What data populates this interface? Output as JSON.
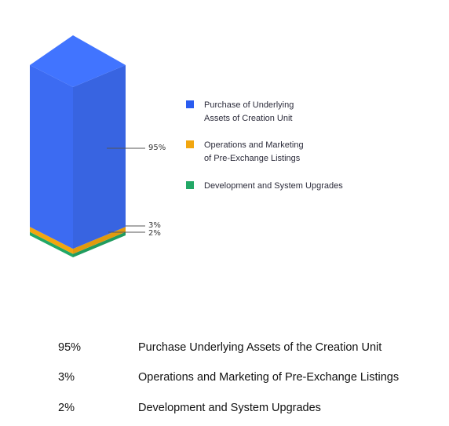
{
  "chart_data": {
    "type": "bar",
    "style": "3d-stacked-column",
    "categories": [
      "Purchase of Underlying Assets of Creation Unit",
      "Operations and Marketing of Pre-Exchange Listings",
      "Development and System Upgrades"
    ],
    "values": [
      95,
      3,
      2
    ],
    "value_labels": [
      "95%",
      "3%",
      "2%"
    ],
    "colors": [
      "#3c6bf2",
      "#f2a60f",
      "#22a866"
    ],
    "legend_position": "right"
  },
  "legend": {
    "items": [
      {
        "label": "Purchase of Underlying\nAssets of Creation Unit",
        "color": "#2a5cf0"
      },
      {
        "label": "Operations and Marketing\nof Pre-Exchange Listings",
        "color": "#f2a60f"
      },
      {
        "label": "Development and System Upgrades",
        "color": "#22a866"
      }
    ]
  },
  "table": {
    "rows": [
      {
        "pct": "95%",
        "desc": "Purchase Underlying Assets of the Creation Unit"
      },
      {
        "pct": "3%",
        "desc": "Operations and Marketing of Pre-Exchange Listings"
      },
      {
        "pct": "2%",
        "desc": "Development and System Upgrades"
      }
    ]
  }
}
